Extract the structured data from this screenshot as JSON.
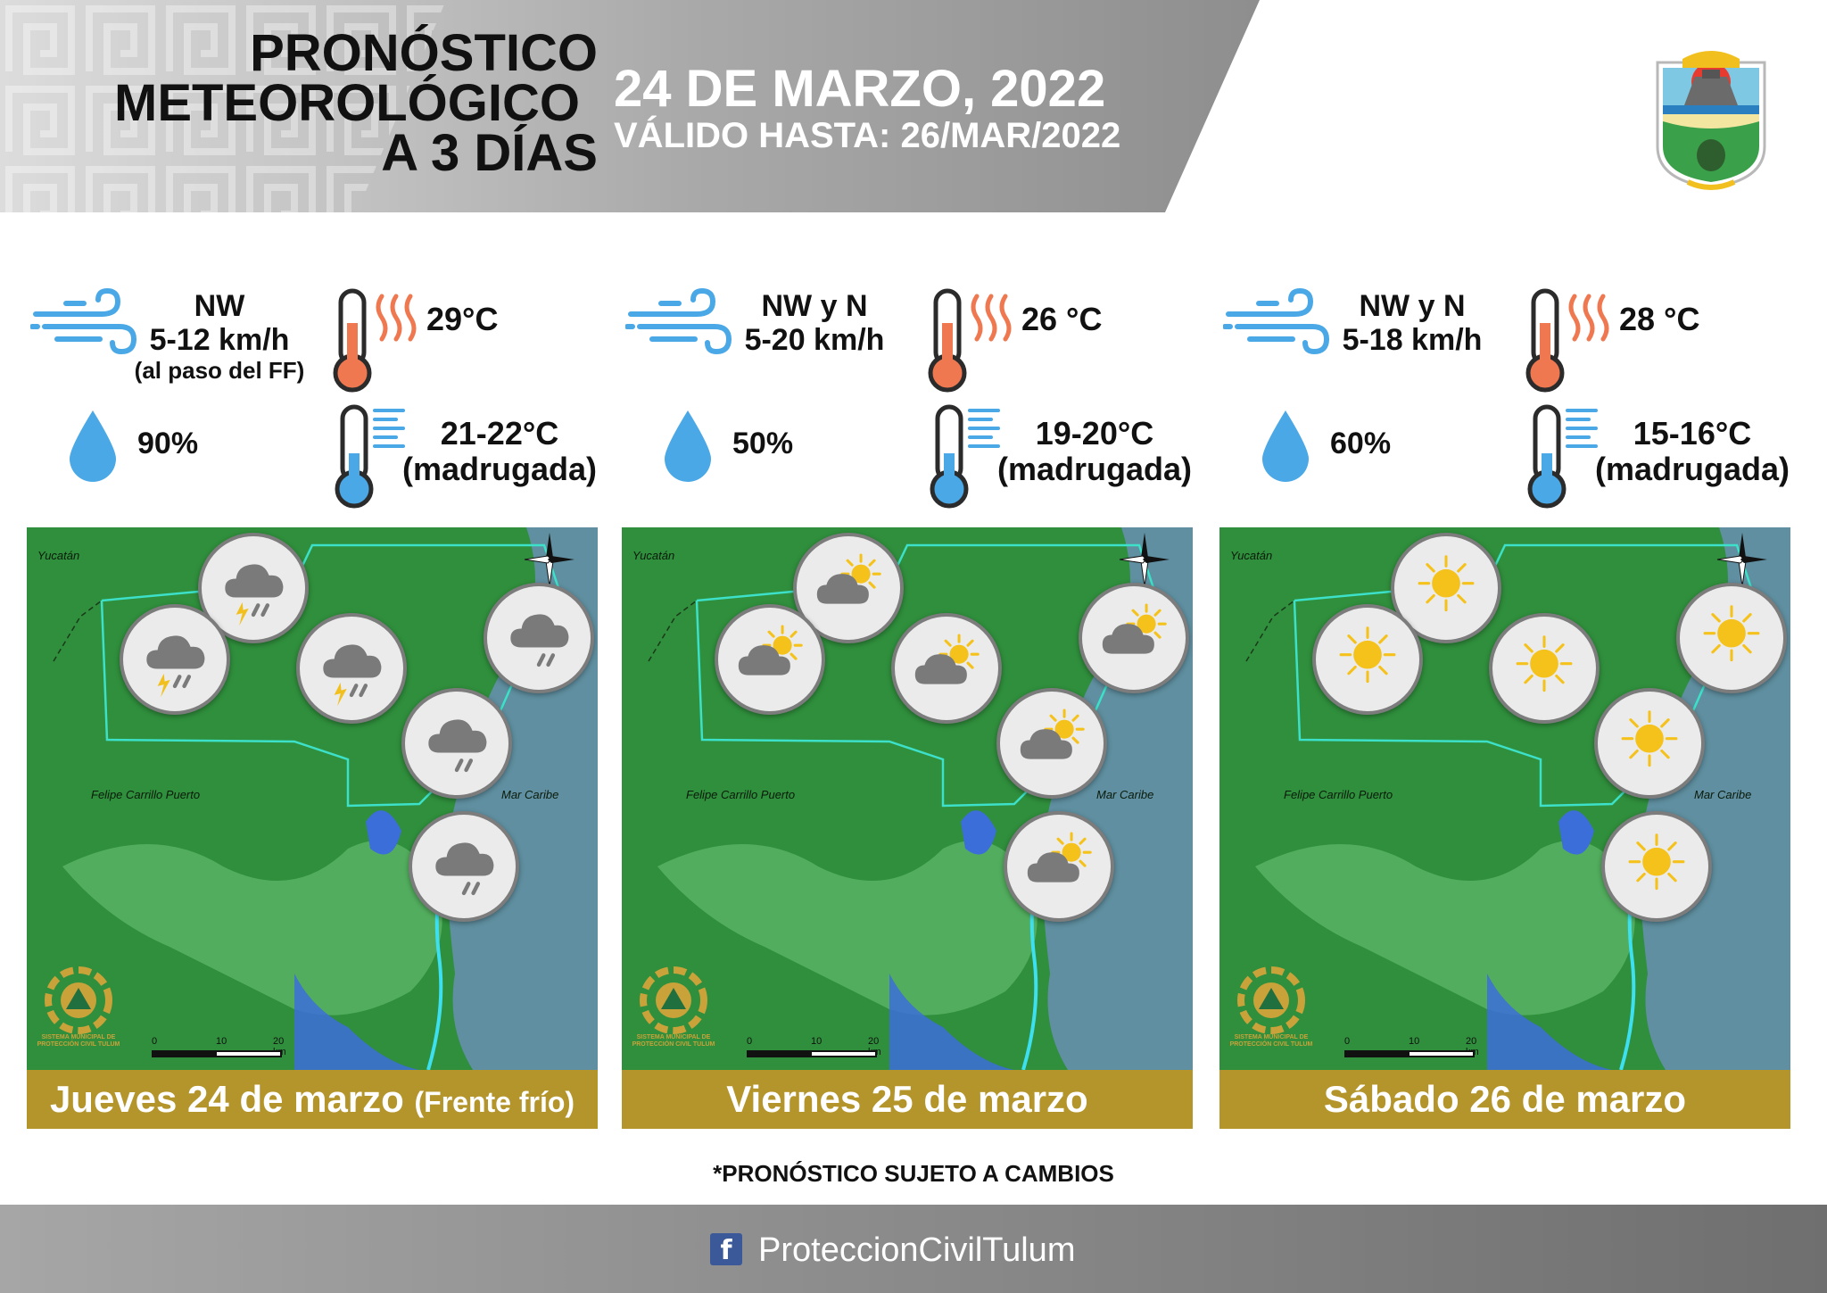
{
  "header": {
    "title_lines": [
      "PRONÓSTICO",
      "METEOROLÓGICO",
      "A 3 DÍAS"
    ],
    "date": "24 DE MARZO, 2022",
    "valid_until": "VÁLIDO HASTA: 26/MAR/2022"
  },
  "days": [
    {
      "label": "Jueves 24 de marzo",
      "label_note": "(Frente frío)",
      "wind_dir": "NW",
      "wind_speed": "5-12 km/h",
      "wind_note": "(al paso del FF)",
      "temp_max": "29°C",
      "humidity": "90%",
      "temp_min": "21-22°C",
      "temp_min_note": "(madrugada)",
      "conditions": [
        "storm",
        "storm",
        "storm",
        "rain",
        "rain",
        "rain"
      ]
    },
    {
      "label": "Viernes 25 de marzo",
      "label_note": "",
      "wind_dir": "NW y N",
      "wind_speed": "5-20 km/h",
      "wind_note": "",
      "temp_max": "26 °C",
      "humidity": "50%",
      "temp_min": "19-20°C",
      "temp_min_note": "(madrugada)",
      "conditions": [
        "partly-cloudy",
        "partly-cloudy",
        "partly-cloudy",
        "partly-cloudy",
        "partly-cloudy",
        "partly-cloudy"
      ]
    },
    {
      "label": "Sábado 26 de marzo",
      "label_note": "",
      "wind_dir": "NW y N",
      "wind_speed": "5-18 km/h",
      "wind_note": "",
      "temp_max": "28 °C",
      "humidity": "60%",
      "temp_min": "15-16°C",
      "temp_min_note": "(madrugada)",
      "conditions": [
        "sunny",
        "sunny",
        "sunny",
        "sunny",
        "sunny",
        "sunny"
      ]
    }
  ],
  "map_labels": {
    "region_north": "Yucatán",
    "city": "Felipe Carrillo Puerto",
    "sea": "Mar Caribe",
    "scale": [
      "0",
      "10",
      "20 km"
    ],
    "agency_text": "SISTEMA MUNICIPAL DE PROTECCIÓN CIVIL TULUM"
  },
  "disclaimer": "*PRONÓSTICO SUJETO A CAMBIOS",
  "footer": {
    "social_icon": "facebook-icon",
    "handle": "ProteccionCivilTulum"
  },
  "colors": {
    "accent_gold": "#b4952b",
    "map_green": "#2f8f3c",
    "sea": "#5f8fa0",
    "border_cyan": "#3de0c8"
  }
}
